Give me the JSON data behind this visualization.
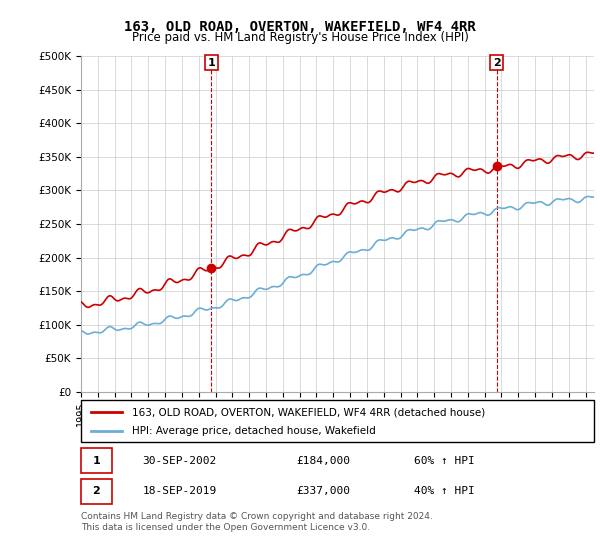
{
  "title": "163, OLD ROAD, OVERTON, WAKEFIELD, WF4 4RR",
  "subtitle": "Price paid vs. HM Land Registry's House Price Index (HPI)",
  "ylabel_ticks": [
    "£0",
    "£50K",
    "£100K",
    "£150K",
    "£200K",
    "£250K",
    "£300K",
    "£350K",
    "£400K",
    "£450K",
    "£500K"
  ],
  "ylim": [
    0,
    500000
  ],
  "xlim_start": 1995.0,
  "xlim_end": 2025.5,
  "purchase1_date": 2002.75,
  "purchase1_price": 184000,
  "purchase1_label": "1",
  "purchase2_date": 2019.71,
  "purchase2_price": 337000,
  "purchase2_label": "2",
  "hpi_color": "#6baed6",
  "price_color": "#cc0000",
  "vline_color": "#cc0000",
  "grid_color": "#cccccc",
  "legend_line1": "163, OLD ROAD, OVERTON, WAKEFIELD, WF4 4RR (detached house)",
  "legend_line2": "HPI: Average price, detached house, Wakefield",
  "table_row1": [
    "1",
    "30-SEP-2002",
    "£184,000",
    "60% ↑ HPI"
  ],
  "table_row2": [
    "2",
    "18-SEP-2019",
    "£337,000",
    "40% ↑ HPI"
  ],
  "footnote": "Contains HM Land Registry data © Crown copyright and database right 2024.\nThis data is licensed under the Open Government Licence v3.0.",
  "background_color": "#ffffff"
}
